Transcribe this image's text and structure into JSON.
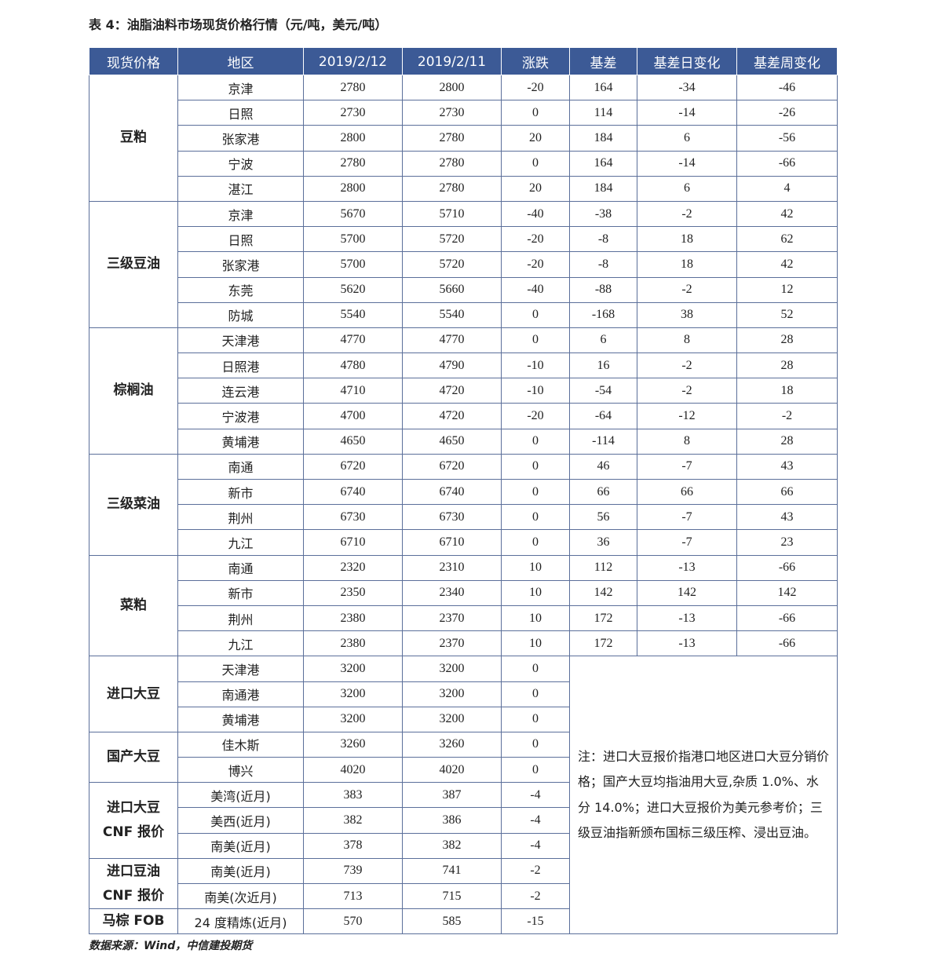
{
  "title": "表 4：油脂油料市场现货价格行情（元/吨，美元/吨）",
  "header": [
    "现货价格",
    "地区",
    "2019/2/12",
    "2019/2/11",
    "涨跌",
    "基差",
    "基差日变化",
    "基差周变化"
  ],
  "groups": [
    {
      "name_lines": [
        "豆粕"
      ],
      "rows": [
        [
          "京津",
          2780,
          2800,
          -20,
          164,
          -34,
          -46
        ],
        [
          "日照",
          2730,
          2730,
          0,
          114,
          -14,
          -26
        ],
        [
          "张家港",
          2800,
          2780,
          20,
          184,
          6,
          -56
        ],
        [
          "宁波",
          2780,
          2780,
          0,
          164,
          -14,
          -66
        ],
        [
          "湛江",
          2800,
          2780,
          20,
          184,
          6,
          4
        ]
      ]
    },
    {
      "name_lines": [
        "三级豆油"
      ],
      "rows": [
        [
          "京津",
          5670,
          5710,
          -40,
          -38,
          -2,
          42
        ],
        [
          "日照",
          5700,
          5720,
          -20,
          -8,
          18,
          62
        ],
        [
          "张家港",
          5700,
          5720,
          -20,
          -8,
          18,
          42
        ],
        [
          "东莞",
          5620,
          5660,
          -40,
          -88,
          -2,
          12
        ],
        [
          "防城",
          5540,
          5540,
          0,
          -168,
          38,
          52
        ]
      ]
    },
    {
      "name_lines": [
        "棕榈油"
      ],
      "rows": [
        [
          "天津港",
          4770,
          4770,
          0,
          6,
          8,
          28
        ],
        [
          "日照港",
          4780,
          4790,
          -10,
          16,
          -2,
          28
        ],
        [
          "连云港",
          4710,
          4720,
          -10,
          -54,
          -2,
          18
        ],
        [
          "宁波港",
          4700,
          4720,
          -20,
          -64,
          -12,
          -2
        ],
        [
          "黄埔港",
          4650,
          4650,
          0,
          -114,
          8,
          28
        ]
      ]
    },
    {
      "name_lines": [
        "三级菜油"
      ],
      "rows": [
        [
          "南通",
          6720,
          6720,
          0,
          46,
          -7,
          43
        ],
        [
          "新市",
          6740,
          6740,
          0,
          66,
          66,
          66
        ],
        [
          "荆州",
          6730,
          6730,
          0,
          56,
          -7,
          43
        ],
        [
          "九江",
          6710,
          6710,
          0,
          36,
          -7,
          23
        ]
      ]
    },
    {
      "name_lines": [
        "菜粕"
      ],
      "rows": [
        [
          "南通",
          2320,
          2310,
          10,
          112,
          -13,
          -66
        ],
        [
          "新市",
          2350,
          2340,
          10,
          142,
          142,
          142
        ],
        [
          "荆州",
          2380,
          2370,
          10,
          172,
          -13,
          -66
        ],
        [
          "九江",
          2380,
          2370,
          10,
          172,
          -13,
          -66
        ]
      ]
    },
    {
      "name_lines": [
        "进口大豆"
      ],
      "rows": [
        [
          "天津港",
          3200,
          3200,
          0
        ],
        [
          "南通港",
          3200,
          3200,
          0
        ],
        [
          "黄埔港",
          3200,
          3200,
          0
        ]
      ]
    },
    {
      "name_lines": [
        "国产大豆"
      ],
      "rows": [
        [
          "佳木斯",
          3260,
          3260,
          0
        ],
        [
          "博兴",
          4020,
          4020,
          0
        ]
      ]
    },
    {
      "name_lines": [
        "进口大豆",
        "CNF 报价"
      ],
      "rows": [
        [
          "美湾(近月)",
          383,
          387,
          -4
        ],
        [
          "美西(近月)",
          382,
          386,
          -4
        ],
        [
          "南美(近月)",
          378,
          382,
          -4
        ]
      ]
    },
    {
      "name_lines": [
        "进口豆油",
        "CNF 报价"
      ],
      "rows": [
        [
          "南美(近月)",
          739,
          741,
          -2
        ],
        [
          "南美(次近月)",
          713,
          715,
          -2
        ]
      ]
    },
    {
      "name_lines": [
        "马棕 FOB"
      ],
      "rows": [
        [
          "24 度精炼(近月)",
          570,
          585,
          -15
        ]
      ]
    }
  ],
  "note": "注：进口大豆报价指港口地区进口大豆分销价格；国产大豆均指油用大豆,杂质 1.0%、水分 14.0%；进口大豆报价为美元参考价；三级豆油指新颁布国标三级压榨、浸出豆油。",
  "source": "数据来源：Wind，中信建投期货"
}
